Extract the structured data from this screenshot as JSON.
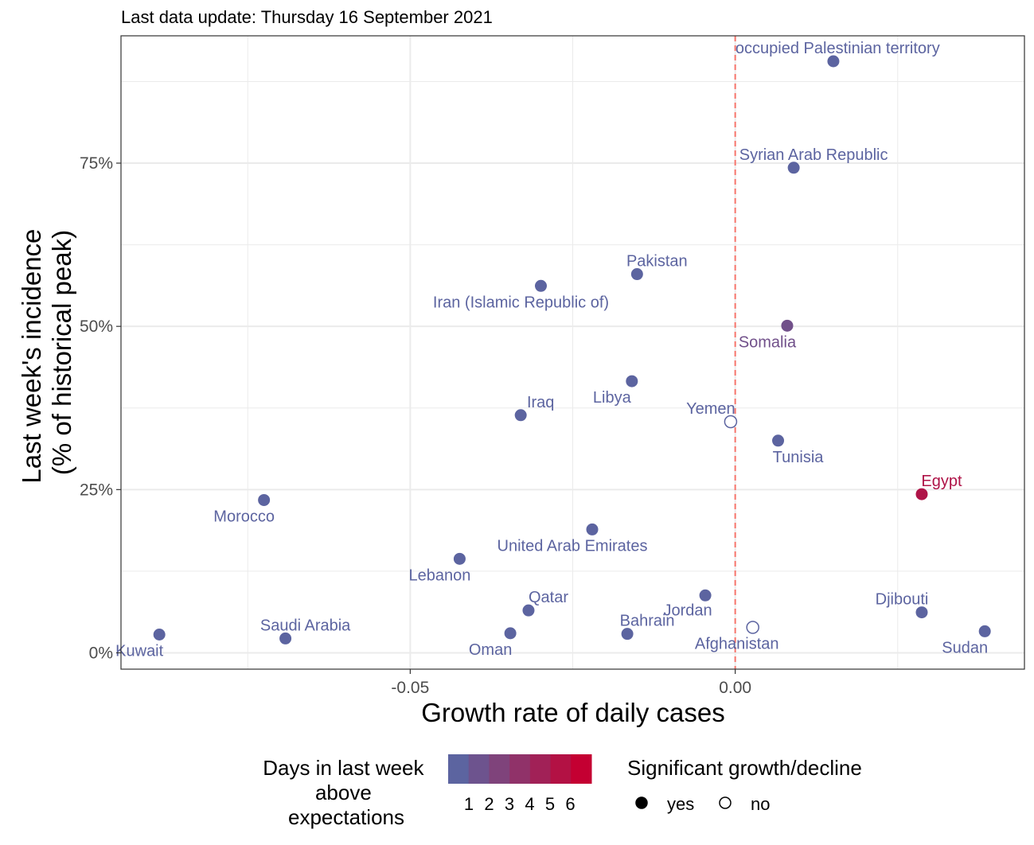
{
  "note": "Last data update: Thursday 16 September 2021",
  "chart_data": {
    "type": "scatter",
    "xlabel": "Growth rate of daily cases",
    "ylabel": [
      "Last week's incidence",
      "(% of historical peak)"
    ],
    "xlim": [
      -0.0945,
      0.0445
    ],
    "ylim": [
      -0.025,
      0.945
    ],
    "x_ticks": [
      {
        "value": -0.05,
        "label": "-0.05"
      },
      {
        "value": 0.0,
        "label": "0.00"
      }
    ],
    "y_ticks": [
      {
        "value": 0.0,
        "label": "0%"
      },
      {
        "value": 0.25,
        "label": "25%"
      },
      {
        "value": 0.5,
        "label": "50%"
      },
      {
        "value": 0.75,
        "label": "75%"
      }
    ],
    "reference_line_x": 0.0,
    "grid": true,
    "points": [
      {
        "name": "occupied Palestinian territory",
        "x": 0.0151,
        "y": 0.906,
        "days": 1,
        "significant": true
      },
      {
        "name": "Syrian Arab Republic",
        "x": 0.009,
        "y": 0.743,
        "days": 1,
        "significant": true
      },
      {
        "name": "Pakistan",
        "x": -0.0151,
        "y": 0.58,
        "days": 1,
        "significant": true
      },
      {
        "name": "Iran (Islamic Republic of)",
        "x": -0.0299,
        "y": 0.562,
        "days": 1,
        "significant": true
      },
      {
        "name": "Somalia",
        "x": 0.008,
        "y": 0.501,
        "days": 2,
        "significant": true
      },
      {
        "name": "Libya",
        "x": -0.0159,
        "y": 0.416,
        "days": 1,
        "significant": true
      },
      {
        "name": "Iraq",
        "x": -0.033,
        "y": 0.364,
        "days": 1,
        "significant": true
      },
      {
        "name": "Yemen",
        "x": -0.0007,
        "y": 0.354,
        "days": 1,
        "significant": false
      },
      {
        "name": "Tunisia",
        "x": 0.0066,
        "y": 0.325,
        "days": 1,
        "significant": true
      },
      {
        "name": "Egypt",
        "x": 0.0287,
        "y": 0.243,
        "days": 5,
        "significant": true
      },
      {
        "name": "Morocco",
        "x": -0.0725,
        "y": 0.234,
        "days": 1,
        "significant": true
      },
      {
        "name": "United Arab Emirates",
        "x": -0.022,
        "y": 0.189,
        "days": 1,
        "significant": true
      },
      {
        "name": "Lebanon",
        "x": -0.0424,
        "y": 0.144,
        "days": 1,
        "significant": true
      },
      {
        "name": "Jordan",
        "x": -0.0046,
        "y": 0.088,
        "days": 1,
        "significant": true
      },
      {
        "name": "Qatar",
        "x": -0.0318,
        "y": 0.065,
        "days": 1,
        "significant": true
      },
      {
        "name": "Djibouti",
        "x": 0.0287,
        "y": 0.062,
        "days": 1,
        "significant": true
      },
      {
        "name": "Afghanistan",
        "x": 0.0027,
        "y": 0.039,
        "days": 1,
        "significant": false
      },
      {
        "name": "Sudan",
        "x": 0.0384,
        "y": 0.033,
        "days": 1,
        "significant": true
      },
      {
        "name": "Oman",
        "x": -0.0346,
        "y": 0.03,
        "days": 1,
        "significant": true
      },
      {
        "name": "Bahrain",
        "x": -0.0166,
        "y": 0.029,
        "days": 1,
        "significant": true
      },
      {
        "name": "Kuwait",
        "x": -0.0886,
        "y": 0.028,
        "days": 1,
        "significant": true
      },
      {
        "name": "Saudi Arabia",
        "x": -0.0692,
        "y": 0.022,
        "days": 1,
        "significant": true
      }
    ]
  },
  "legend": {
    "color": {
      "title": [
        "Days in last week",
        "above",
        "expectations"
      ],
      "labels": [
        "1",
        "2",
        "3",
        "4",
        "5",
        "6"
      ],
      "low_color": "#5c64a0",
      "high_color": "#c40032"
    },
    "shape": {
      "title": "Significant growth/decline",
      "items": [
        {
          "label": "yes",
          "filled": true
        },
        {
          "label": "no",
          "filled": false
        }
      ]
    }
  },
  "colors": {
    "reference_line": "#f8766d",
    "grid": "#ebebeb",
    "panel_border": "#333333"
  }
}
